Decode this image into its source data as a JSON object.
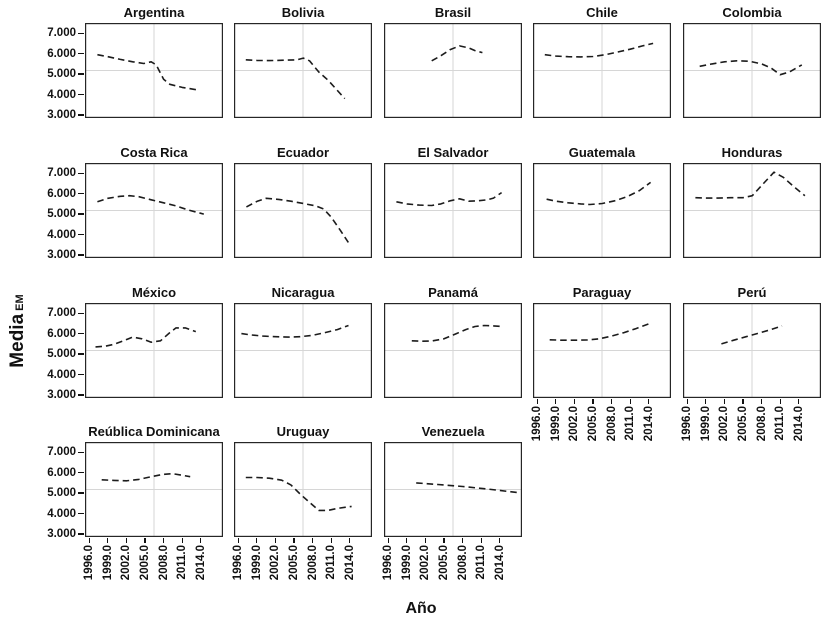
{
  "chart_data": {
    "type": "line",
    "line_style": "dashed",
    "series_color": "#1c1c1c",
    "grid": "center-crosshair",
    "grid_color": "#d6d6d6",
    "xlabel": "Año",
    "ylabel": "Media",
    "ylabel_subscript": "EM",
    "x_domain": [
      1995.3,
      2017.6
    ],
    "y_domain": [
      2.85,
      7.5
    ],
    "x_tick_values": [
      1996,
      1999,
      2002,
      2005,
      2008,
      2011,
      2014
    ],
    "x_tick_labels": [
      "1996.0",
      "1999.0",
      "2002.0",
      "2005.0",
      "2008.0",
      "2011.0",
      "2014.0"
    ],
    "y_tick_values": [
      7,
      6,
      5,
      4,
      3
    ],
    "y_tick_labels": [
      "7.000",
      "6.000",
      "5.000",
      "4.000",
      "3.000"
    ],
    "facets": [
      {
        "title": "Argentina",
        "points": [
          [
            1997.3,
            5.95
          ],
          [
            1999,
            5.85
          ],
          [
            2001,
            5.72
          ],
          [
            2003,
            5.6
          ],
          [
            2004.8,
            5.52
          ],
          [
            2006,
            5.6
          ],
          [
            2006.8,
            5.45
          ],
          [
            2008,
            4.75
          ],
          [
            2009,
            4.5
          ],
          [
            2011,
            4.35
          ],
          [
            2013,
            4.25
          ],
          [
            2013.8,
            4.2
          ]
        ]
      },
      {
        "title": "Bolivia",
        "points": [
          [
            1997.2,
            5.7
          ],
          [
            1999,
            5.67
          ],
          [
            2001,
            5.66
          ],
          [
            2003.5,
            5.68
          ],
          [
            2005.5,
            5.7
          ],
          [
            2006.5,
            5.78
          ],
          [
            2007.5,
            5.65
          ],
          [
            2009,
            5.1
          ],
          [
            2010.5,
            4.7
          ],
          [
            2012,
            4.2
          ],
          [
            2013.2,
            3.8
          ]
        ]
      },
      {
        "title": "Brasil",
        "points": [
          [
            2003,
            5.65
          ],
          [
            2004.5,
            5.9
          ],
          [
            2006,
            6.2
          ],
          [
            2007.5,
            6.38
          ],
          [
            2009,
            6.28
          ],
          [
            2010,
            6.15
          ],
          [
            2011.2,
            6.05
          ]
        ]
      },
      {
        "title": "Chile",
        "points": [
          [
            1997.2,
            5.95
          ],
          [
            1999,
            5.88
          ],
          [
            2001,
            5.85
          ],
          [
            2003,
            5.84
          ],
          [
            2005,
            5.86
          ],
          [
            2007,
            5.95
          ],
          [
            2009,
            6.08
          ],
          [
            2011,
            6.22
          ],
          [
            2013,
            6.38
          ],
          [
            2014.7,
            6.5
          ]
        ]
      },
      {
        "title": "Colombia",
        "points": [
          [
            1998,
            5.38
          ],
          [
            2000,
            5.5
          ],
          [
            2002,
            5.6
          ],
          [
            2004,
            5.65
          ],
          [
            2006,
            5.63
          ],
          [
            2008,
            5.5
          ],
          [
            2009.5,
            5.3
          ],
          [
            2011,
            4.97
          ],
          [
            2012.5,
            5.1
          ],
          [
            2014.5,
            5.45
          ]
        ]
      },
      {
        "title": "Costa Rica",
        "points": [
          [
            1997.3,
            5.6
          ],
          [
            1999,
            5.77
          ],
          [
            2001,
            5.87
          ],
          [
            2002.5,
            5.9
          ],
          [
            2004,
            5.85
          ],
          [
            2006,
            5.7
          ],
          [
            2008,
            5.55
          ],
          [
            2010,
            5.4
          ],
          [
            2012,
            5.2
          ],
          [
            2014.5,
            5.0
          ]
        ]
      },
      {
        "title": "Ecuador",
        "points": [
          [
            1997.3,
            5.35
          ],
          [
            1999,
            5.62
          ],
          [
            2000.5,
            5.77
          ],
          [
            2002.5,
            5.72
          ],
          [
            2004.5,
            5.63
          ],
          [
            2006.5,
            5.52
          ],
          [
            2008.5,
            5.4
          ],
          [
            2009.8,
            5.25
          ],
          [
            2011,
            4.85
          ],
          [
            2012.5,
            4.2
          ],
          [
            2013.8,
            3.6
          ]
        ]
      },
      {
        "title": "El Salvador",
        "points": [
          [
            1997.3,
            5.6
          ],
          [
            1999,
            5.5
          ],
          [
            2001,
            5.44
          ],
          [
            2003,
            5.42
          ],
          [
            2004.5,
            5.5
          ],
          [
            2006,
            5.65
          ],
          [
            2007.5,
            5.75
          ],
          [
            2009,
            5.63
          ],
          [
            2010.5,
            5.65
          ],
          [
            2012,
            5.7
          ],
          [
            2013,
            5.78
          ],
          [
            2014.3,
            6.05
          ]
        ]
      },
      {
        "title": "Guatemala",
        "points": [
          [
            1997.5,
            5.73
          ],
          [
            1999,
            5.63
          ],
          [
            2001,
            5.55
          ],
          [
            2003,
            5.5
          ],
          [
            2004.5,
            5.47
          ],
          [
            2006.5,
            5.52
          ],
          [
            2008.5,
            5.65
          ],
          [
            2010.5,
            5.85
          ],
          [
            2012.5,
            6.15
          ],
          [
            2014.3,
            6.55
          ]
        ]
      },
      {
        "title": "Honduras",
        "points": [
          [
            1997.3,
            5.8
          ],
          [
            1999,
            5.78
          ],
          [
            2001,
            5.78
          ],
          [
            2003,
            5.8
          ],
          [
            2005,
            5.8
          ],
          [
            2006.5,
            5.9
          ],
          [
            2008,
            6.4
          ],
          [
            2010,
            7.05
          ],
          [
            2011.5,
            6.8
          ],
          [
            2013,
            6.4
          ],
          [
            2015,
            5.9
          ]
        ]
      },
      {
        "title": "México",
        "points": [
          [
            1997,
            5.35
          ],
          [
            1998.5,
            5.38
          ],
          [
            2000,
            5.48
          ],
          [
            2001.5,
            5.65
          ],
          [
            2003,
            5.83
          ],
          [
            2004.5,
            5.75
          ],
          [
            2006,
            5.58
          ],
          [
            2007.5,
            5.65
          ],
          [
            2009,
            6.05
          ],
          [
            2010,
            6.28
          ],
          [
            2011.5,
            6.28
          ],
          [
            2013.2,
            6.1
          ]
        ]
      },
      {
        "title": "Nicaragua",
        "points": [
          [
            1996.5,
            6.0
          ],
          [
            1998,
            5.94
          ],
          [
            2000,
            5.88
          ],
          [
            2002,
            5.85
          ],
          [
            2004,
            5.83
          ],
          [
            2006,
            5.85
          ],
          [
            2008,
            5.92
          ],
          [
            2010,
            6.05
          ],
          [
            2012,
            6.2
          ],
          [
            2013.8,
            6.4
          ]
        ]
      },
      {
        "title": "Panamá",
        "points": [
          [
            1999.8,
            5.65
          ],
          [
            2001.5,
            5.63
          ],
          [
            2003,
            5.64
          ],
          [
            2005,
            5.75
          ],
          [
            2007,
            6.0
          ],
          [
            2008.5,
            6.2
          ],
          [
            2010,
            6.35
          ],
          [
            2011.5,
            6.4
          ],
          [
            2013,
            6.38
          ],
          [
            2014.3,
            6.35
          ]
        ]
      },
      {
        "title": "Paraguay",
        "points": [
          [
            1998,
            5.7
          ],
          [
            2000,
            5.68
          ],
          [
            2002,
            5.68
          ],
          [
            2004,
            5.69
          ],
          [
            2006,
            5.75
          ],
          [
            2008,
            5.88
          ],
          [
            2010,
            6.05
          ],
          [
            2012,
            6.25
          ],
          [
            2014.2,
            6.5
          ]
        ]
      },
      {
        "title": "Perú",
        "points": [
          [
            2001.5,
            5.5
          ],
          [
            2003.5,
            5.68
          ],
          [
            2005.5,
            5.85
          ],
          [
            2007.5,
            6.02
          ],
          [
            2009.5,
            6.2
          ],
          [
            2011.3,
            6.38
          ]
        ]
      },
      {
        "title": "Reública Dominicana",
        "points": [
          [
            1998,
            5.65
          ],
          [
            2000,
            5.62
          ],
          [
            2002,
            5.6
          ],
          [
            2004,
            5.67
          ],
          [
            2006,
            5.8
          ],
          [
            2008,
            5.92
          ],
          [
            2009.5,
            5.95
          ],
          [
            2011,
            5.87
          ],
          [
            2012.3,
            5.8
          ]
        ]
      },
      {
        "title": "Uruguay",
        "points": [
          [
            1997.2,
            5.76
          ],
          [
            1999,
            5.76
          ],
          [
            2001,
            5.73
          ],
          [
            2003,
            5.63
          ],
          [
            2004.5,
            5.4
          ],
          [
            2006,
            4.95
          ],
          [
            2007.5,
            4.55
          ],
          [
            2009,
            4.15
          ],
          [
            2010.5,
            4.15
          ],
          [
            2012,
            4.25
          ],
          [
            2014.3,
            4.35
          ]
        ]
      },
      {
        "title": "Venezuela",
        "points": [
          [
            2000.5,
            5.5
          ],
          [
            2004,
            5.42
          ],
          [
            2008,
            5.32
          ],
          [
            2012,
            5.2
          ],
          [
            2016.8,
            5.03
          ]
        ]
      }
    ]
  }
}
